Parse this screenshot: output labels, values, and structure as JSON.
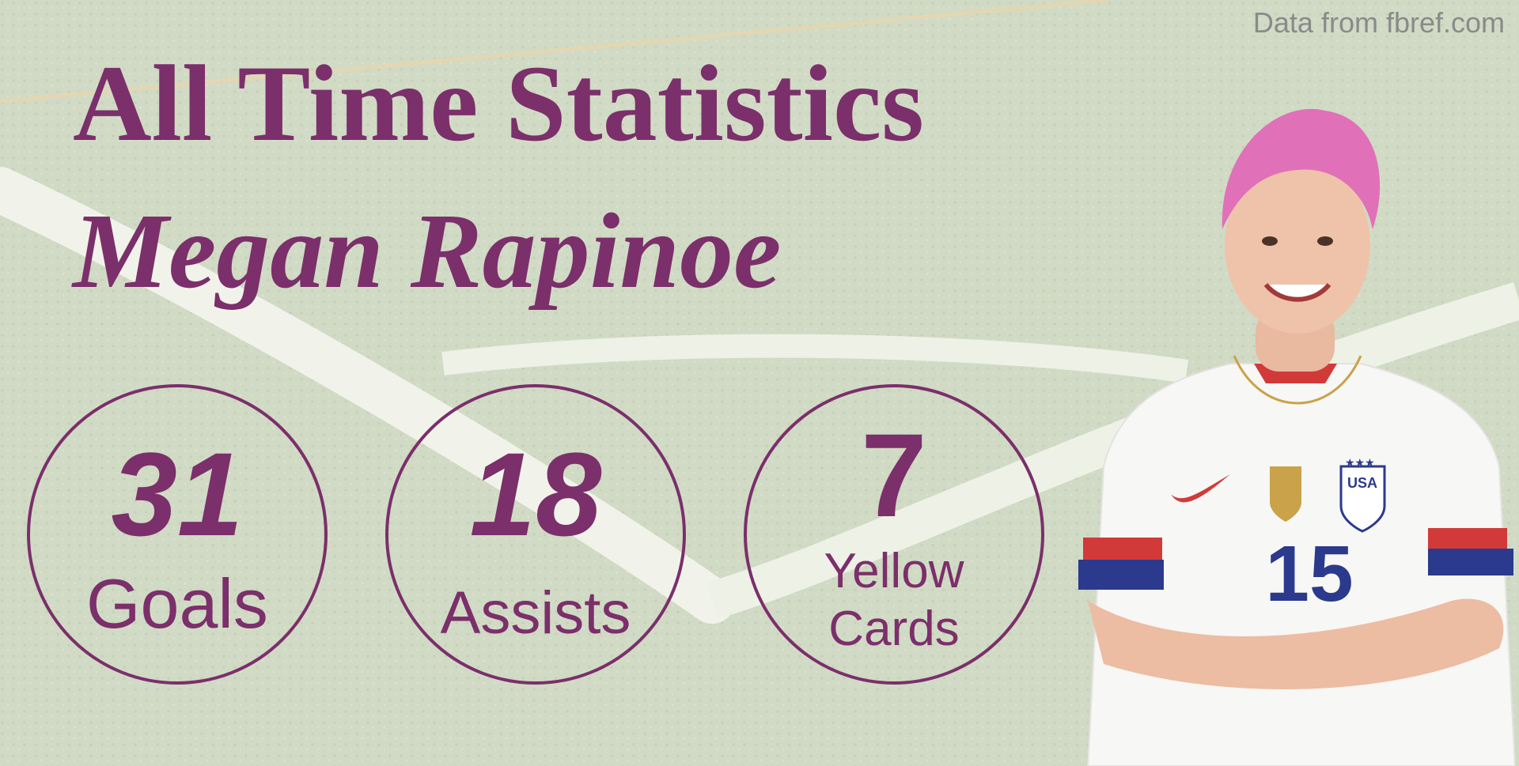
{
  "source_note": "Data from fbref.com",
  "title": "All Time Statistics",
  "player_name": "Megan Rapinoe",
  "stats": [
    {
      "value": "31",
      "label": "Goals"
    },
    {
      "value": "18",
      "label": "Assists"
    },
    {
      "value": "7",
      "label": "Yellow Cards"
    }
  ],
  "jersey": {
    "number": "15",
    "crest_text": "USA"
  },
  "colors": {
    "accent": "#7b2f6b",
    "background": "#d3dcc6",
    "field_lines": "#f4f5ef",
    "hair": "#e070b8",
    "jersey_blue": "#2b3a8c",
    "jersey_red": "#d23a3a"
  }
}
